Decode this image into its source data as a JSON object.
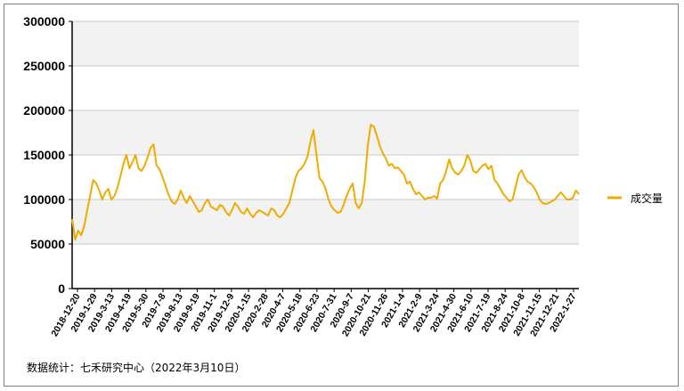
{
  "chart_data": {
    "type": "line",
    "title": "",
    "xlabel": "",
    "ylabel": "",
    "ylim": [
      0,
      300000
    ],
    "yticks": [
      "0",
      "50000",
      "100000",
      "150000",
      "200000",
      "250000",
      "300000"
    ],
    "xtick_labels": [
      "2018-12-20",
      "2019-1-29",
      "2019-3-13",
      "2019-4-19",
      "2019-5-30",
      "2019-7-8",
      "2019-8-13",
      "2019-9-19",
      "2019-11-1",
      "2019-12-9",
      "2020-1-15",
      "2020-2-28",
      "2020-4-7",
      "2020-5-18",
      "2020-6-23",
      "2020-7-31",
      "2020-9-7",
      "2020-10-21",
      "2020-11-26",
      "2021-1-4",
      "2021-2-9",
      "2021-3-24",
      "2021-4-30",
      "2021-6-10",
      "2021-7-19",
      "2021-8-24",
      "2021-10-8",
      "2021-11-15",
      "2021-12-21",
      "2022-1-27"
    ],
    "grid": "horizontal",
    "band_fill": "alternating",
    "legend_position": "right",
    "series": [
      {
        "name": "成交量",
        "color": "#f0ab00",
        "values": [
          78000,
          55000,
          65000,
          60000,
          70000,
          88000,
          105000,
          122000,
          118000,
          110000,
          100000,
          108000,
          112000,
          100000,
          104000,
          113000,
          126000,
          140000,
          150000,
          135000,
          142000,
          150000,
          135000,
          132000,
          138000,
          147000,
          158000,
          162000,
          138000,
          134000,
          125000,
          115000,
          105000,
          98000,
          95000,
          100000,
          110000,
          102000,
          96000,
          104000,
          98000,
          92000,
          86000,
          88000,
          96000,
          100000,
          92000,
          90000,
          88000,
          94000,
          92000,
          86000,
          82000,
          88000,
          96000,
          92000,
          86000,
          84000,
          90000,
          84000,
          80000,
          85000,
          88000,
          86000,
          84000,
          82000,
          90000,
          88000,
          82000,
          80000,
          84000,
          90000,
          96000,
          110000,
          124000,
          132000,
          135000,
          140000,
          148000,
          165000,
          178000,
          150000,
          124000,
          120000,
          112000,
          100000,
          92000,
          88000,
          85000,
          86000,
          94000,
          104000,
          112000,
          118000,
          96000,
          90000,
          96000,
          120000,
          160000,
          184000,
          182000,
          172000,
          160000,
          152000,
          146000,
          138000,
          140000,
          135000,
          136000,
          132000,
          128000,
          118000,
          120000,
          112000,
          106000,
          108000,
          104000,
          100000,
          102000,
          102000,
          104000,
          101000,
          118000,
          122000,
          132000,
          145000,
          135000,
          130000,
          128000,
          132000,
          138000,
          150000,
          144000,
          132000,
          130000,
          134000,
          138000,
          140000,
          134000,
          138000,
          122000,
          118000,
          112000,
          106000,
          102000,
          98000,
          100000,
          114000,
          128000,
          133000,
          125000,
          120000,
          118000,
          114000,
          108000,
          100000,
          96000,
          95000,
          96000,
          98000,
          100000,
          104000,
          108000,
          104000,
          100000,
          100000,
          102000,
          110000,
          106000
        ]
      }
    ]
  },
  "source_note": "数据统计：七禾研究中心（2022年3月10日）"
}
